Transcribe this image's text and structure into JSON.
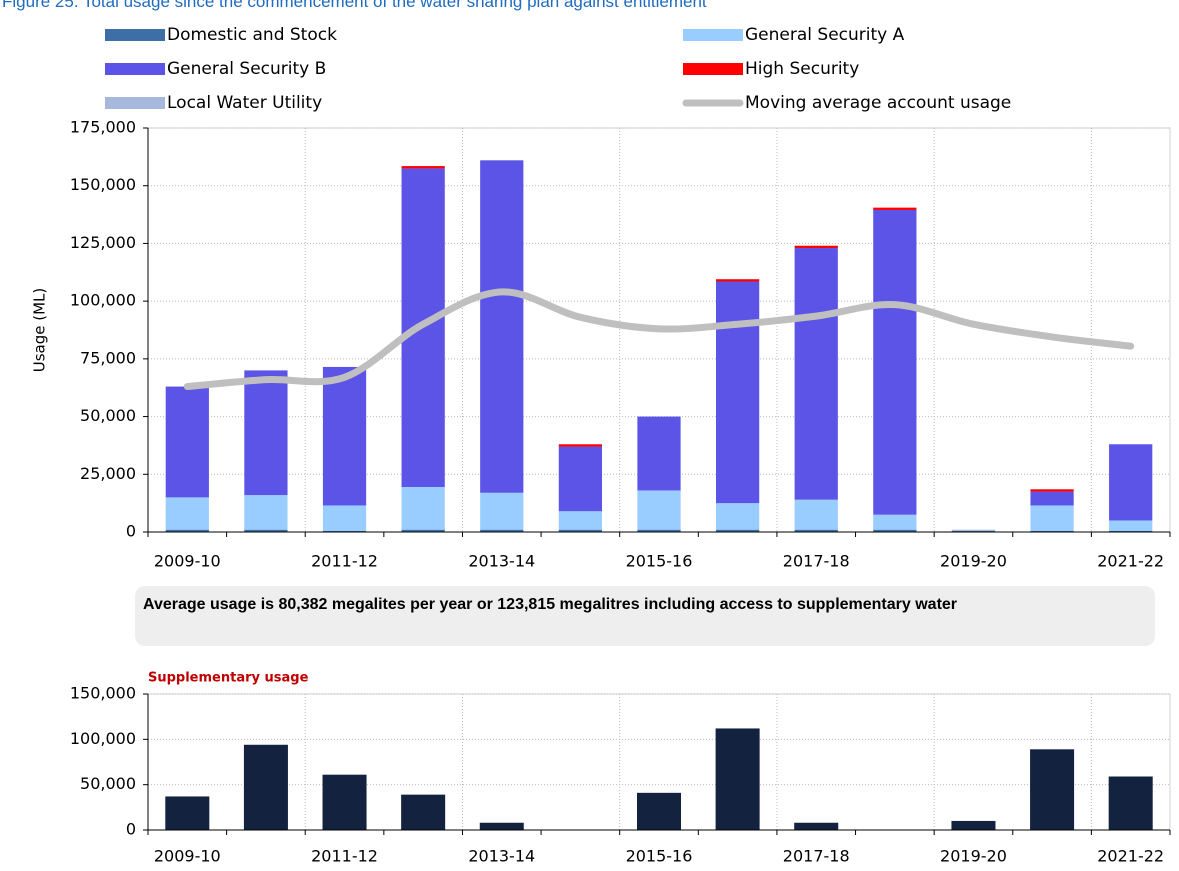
{
  "chart_data": [
    {
      "type": "bar",
      "stacked": true,
      "title": "Figure 25. Total usage since the commencement of the water sharing plan against entitlement",
      "y_label": "Usage (ML)",
      "annotation": "Average usage is 80,382 megalites per year or 123,815 megalitres including access to supplementary water",
      "categories": [
        "2009-10",
        null,
        "2011-12",
        null,
        "2013-14",
        null,
        "2015-16",
        null,
        "2017-18",
        null,
        "2019-20",
        null,
        "2021-22"
      ],
      "series": [
        {
          "name": "Domestic and Stock",
          "color": "#3d6fa6",
          "values": [
            1000,
            1000,
            500,
            1000,
            1000,
            1000,
            1000,
            1000,
            1000,
            1000,
            500,
            500,
            500
          ]
        },
        {
          "name": "General Security A",
          "color": "#99ccff",
          "values": [
            14000,
            15000,
            11000,
            18500,
            16000,
            8000,
            17000,
            11500,
            13000,
            6500,
            0,
            11000,
            4500
          ]
        },
        {
          "name": "General Security B",
          "color": "#5b54e6",
          "values": [
            48000,
            54000,
            60000,
            138000,
            144000,
            28000,
            32000,
            96000,
            109000,
            132000,
            0,
            6000,
            33000
          ]
        },
        {
          "name": "High Security",
          "color": "#ff0000",
          "values": [
            0,
            0,
            0,
            1000,
            0,
            1000,
            0,
            1000,
            1000,
            1000,
            0,
            1000,
            0
          ]
        },
        {
          "name": "Local Water Utility",
          "color": "#a6b9dc",
          "values": [
            0,
            0,
            0,
            0,
            0,
            0,
            0,
            0,
            0,
            0,
            500,
            0,
            0
          ]
        },
        {
          "name": "Moving average account usage",
          "color": "#bfbfbf",
          "type": "line",
          "values": [
            63000,
            66000,
            67000,
            90000,
            104000,
            93000,
            88000,
            90000,
            93500,
            98500,
            90000,
            84500,
            80500
          ]
        }
      ],
      "ylim": [
        0,
        175000
      ],
      "yticks": [
        0,
        {
          "value": 25000,
          "label": "25,000"
        },
        {
          "value": 50000,
          "label": "50,000"
        },
        {
          "value": 75000,
          "label": "75,000"
        },
        {
          "value": 100000,
          "label": "100,000"
        },
        {
          "value": 125000,
          "label": "125,000"
        },
        {
          "value": 150000,
          "label": "150,000"
        },
        {
          "value": 175000,
          "label": "175,000"
        }
      ],
      "grid": true
    },
    {
      "type": "bar",
      "title": "Supplementary usage",
      "categories": [
        "2009-10",
        null,
        "2011-12",
        null,
        "2013-14",
        null,
        "2015-16",
        null,
        "2017-18",
        null,
        "2019-20",
        null,
        "2021-22"
      ],
      "values": [
        37000,
        94000,
        61000,
        39000,
        8000,
        0,
        41000,
        112000,
        8000,
        0,
        10000,
        89000,
        59000
      ],
      "color": "#13233f",
      "ylim": [
        0,
        150000
      ],
      "yticks": [
        0,
        {
          "value": 50000,
          "label": "50,000"
        },
        {
          "value": 100000,
          "label": "100,000"
        },
        {
          "value": 150000,
          "label": "150,000"
        }
      ],
      "grid": true
    }
  ]
}
